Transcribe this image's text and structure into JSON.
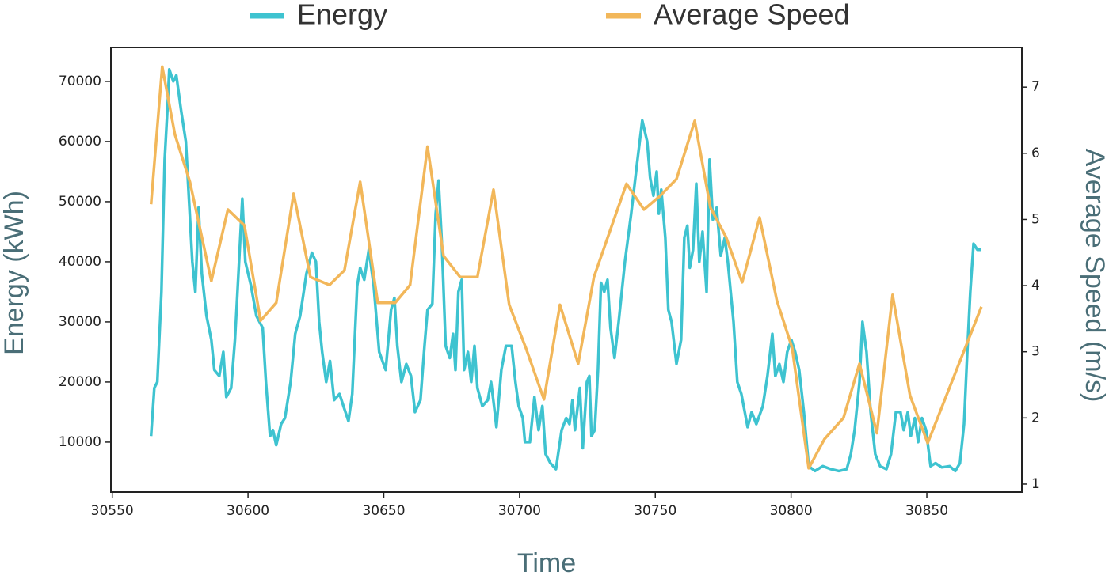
{
  "chart_data": {
    "type": "line",
    "x_label": "Time",
    "y_label": "Energy (kWh)",
    "y2_label": "Average Speed (m/s)",
    "xlim": [
      30549.5,
      30885
    ],
    "ylim": [
      1700,
      75650
    ],
    "y2lim": [
      0.88,
      7.6
    ],
    "xticks": [
      30550,
      30600,
      30650,
      30700,
      30750,
      30800,
      30850
    ],
    "yticks": [
      10000,
      20000,
      30000,
      40000,
      50000,
      60000,
      70000
    ],
    "y2ticks": [
      1,
      2,
      3,
      4,
      5,
      6,
      7
    ],
    "legend": "top",
    "series": [
      {
        "name": "Energy",
        "color": "#3ec3d0",
        "x": [
          30564.3,
          30565.5,
          30566.6,
          30568.1,
          30569.3,
          30570.4,
          30571.0,
          30572.5,
          30573.6,
          30575.4,
          30577.1,
          30578.3,
          30579.5,
          30580.6,
          30581.8,
          30583.0,
          30584.7,
          30586.5,
          30587.6,
          30589.4,
          30590.9,
          30592.0,
          30593.8,
          30595.2,
          30596.7,
          30597.9,
          30599.0,
          30601.1,
          30603.1,
          30605.4,
          30606.6,
          30608.1,
          30609.2,
          30610.4,
          30612.2,
          30613.6,
          30615.7,
          30617.4,
          30619.2,
          30621.5,
          30623.5,
          30625.0,
          30626.2,
          30627.3,
          30628.8,
          30630.2,
          30631.7,
          30633.7,
          30635.5,
          30637.0,
          30638.4,
          30640.2,
          30641.3,
          30642.8,
          30644.5,
          30646.3,
          30648.3,
          30650.7,
          30652.7,
          30653.9,
          30655.0,
          30656.5,
          30658.3,
          30660.0,
          30661.5,
          30663.5,
          30665.0,
          30666.1,
          30667.9,
          30669.1,
          30670.2,
          30671.4,
          30672.8,
          30674.3,
          30675.5,
          30676.4,
          30677.5,
          30678.7,
          30679.6,
          30681.0,
          30682.2,
          30683.4,
          30684.5,
          30686.3,
          30688.3,
          30689.5,
          30690.6,
          30691.5,
          30693.3,
          30695.0,
          30697.1,
          30698.5,
          30699.7,
          30701.2,
          30702.0,
          30703.8,
          30705.5,
          30707.0,
          30708.4,
          30709.6,
          30711.4,
          30713.4,
          30715.5,
          30717.2,
          30718.4,
          30719.5,
          30720.4,
          30722.2,
          30723.3,
          30724.8,
          30725.7,
          30726.5,
          30727.7,
          30728.9,
          30730.0,
          30731.2,
          30732.4,
          30733.5,
          30735.0,
          30736.5,
          30738.8,
          30741.1,
          30743.2,
          30745.2,
          30747.0,
          30748.1,
          30749.3,
          30750.5,
          30751.3,
          30752.2,
          30753.7,
          30754.8,
          30756.0,
          30757.8,
          30759.5,
          30760.7,
          30761.8,
          30762.7,
          30763.9,
          30765.1,
          30766.2,
          30767.4,
          30768.9,
          30770.0,
          30771.2,
          30772.6,
          30774.1,
          30775.6,
          30776.7,
          30778.8,
          30780.2,
          30781.7,
          30784.0,
          30785.5,
          30787.2,
          30789.6,
          30791.3,
          30793.1,
          30794.2,
          30795.7,
          30797.2,
          30798.6,
          30800.1,
          30801.5,
          30803.0,
          30804.7,
          30806.5,
          30808.8,
          30811.7,
          30814.7,
          30817.6,
          30820.5,
          30822.0,
          30823.4,
          30825.2,
          30826.3,
          30827.8,
          30829.3,
          30831.0,
          30832.8,
          30835.1,
          30836.8,
          30838.6,
          30840.3,
          30841.5,
          30843.0,
          30844.1,
          30845.6,
          30846.8,
          30848.2,
          30849.7,
          30851.4,
          30853.2,
          30855.5,
          30858.4,
          30860.5,
          30862.2,
          30863.7,
          30864.9,
          30866.0,
          30867.2,
          30868.6,
          30870.1
        ],
        "values": [
          11000,
          19000,
          20000,
          35000,
          57000,
          66000,
          72000,
          70000,
          71000,
          65000,
          60000,
          50000,
          40000,
          35000,
          49000,
          38000,
          31000,
          27000,
          22000,
          21000,
          25000,
          17500,
          19000,
          27000,
          40000,
          50500,
          40000,
          36000,
          31000,
          29000,
          20000,
          11000,
          12000,
          9500,
          13000,
          14000,
          20000,
          28000,
          31000,
          38000,
          41500,
          40000,
          30000,
          25000,
          20000,
          23500,
          17000,
          18000,
          15500,
          13500,
          18000,
          36000,
          39000,
          37000,
          42000,
          36000,
          25000,
          22000,
          32000,
          34000,
          26000,
          20000,
          23000,
          21000,
          15000,
          17000,
          26000,
          32000,
          33000,
          48000,
          53500,
          43000,
          26000,
          24000,
          28000,
          22000,
          35000,
          37000,
          22000,
          25000,
          20000,
          26000,
          19000,
          16000,
          17000,
          20000,
          16000,
          12500,
          22000,
          26000,
          26000,
          20000,
          16000,
          14000,
          10000,
          10000,
          17500,
          12000,
          16000,
          8000,
          6500,
          5500,
          12000,
          14000,
          13000,
          17000,
          12000,
          19000,
          9000,
          20000,
          21000,
          11000,
          12000,
          22000,
          36500,
          35000,
          37000,
          29000,
          24000,
          30000,
          40000,
          48000,
          56000,
          63500,
          60000,
          54000,
          51000,
          55000,
          48000,
          52000,
          44000,
          32000,
          30000,
          23000,
          27000,
          44000,
          46000,
          39000,
          42000,
          53000,
          40000,
          45000,
          35000,
          57000,
          47000,
          49000,
          41000,
          44000,
          40000,
          30000,
          20000,
          18000,
          12500,
          15000,
          13000,
          16000,
          21000,
          28000,
          21000,
          23000,
          20000,
          25000,
          27000,
          25000,
          22000,
          15000,
          6000,
          5200,
          6000,
          5500,
          5200,
          5500,
          8000,
          12000,
          20000,
          30000,
          25000,
          15000,
          8000,
          6000,
          5500,
          8000,
          15000,
          15000,
          12000,
          15000,
          11000,
          14000,
          10000,
          14000,
          12000,
          6000,
          6500,
          5800,
          6000,
          5200,
          6500,
          13000,
          25000,
          35000,
          43000,
          42000,
          42000
        ]
      },
      {
        "name": "Average Speed",
        "color": "#f2b75a",
        "axis": "y2",
        "x": [
          30564.3,
          30568.4,
          30573.1,
          30578.6,
          30586.5,
          30592.6,
          30598.7,
          30604.6,
          30610.4,
          30616.8,
          30623.0,
          30630.0,
          30635.5,
          30641.3,
          30647.8,
          30654.2,
          30659.7,
          30666.1,
          30672.0,
          30678.1,
          30684.5,
          30690.4,
          30696.2,
          30702.3,
          30709.0,
          30714.9,
          30721.6,
          30727.4,
          30733.5,
          30739.4,
          30745.8,
          30751.6,
          30757.8,
          30764.5,
          30770.3,
          30776.1,
          30782.0,
          30788.4,
          30794.8,
          30800.4,
          30806.5,
          30812.3,
          30819.3,
          30825.2,
          30831.6,
          30837.4,
          30843.8,
          30850.3,
          30870.1
        ],
        "values": [
          5.23,
          7.31,
          6.28,
          5.57,
          4.07,
          5.15,
          4.91,
          3.47,
          3.74,
          5.39,
          4.13,
          4.01,
          4.23,
          5.57,
          3.74,
          3.74,
          4.01,
          6.1,
          4.45,
          4.13,
          4.13,
          5.45,
          3.71,
          3.06,
          2.28,
          3.71,
          2.82,
          4.13,
          4.85,
          5.54,
          5.15,
          5.35,
          5.61,
          6.49,
          5.18,
          4.73,
          4.05,
          5.03,
          3.77,
          3.06,
          1.24,
          1.68,
          2.0,
          2.82,
          1.77,
          3.86,
          2.34,
          1.62,
          3.68
        ]
      }
    ]
  }
}
